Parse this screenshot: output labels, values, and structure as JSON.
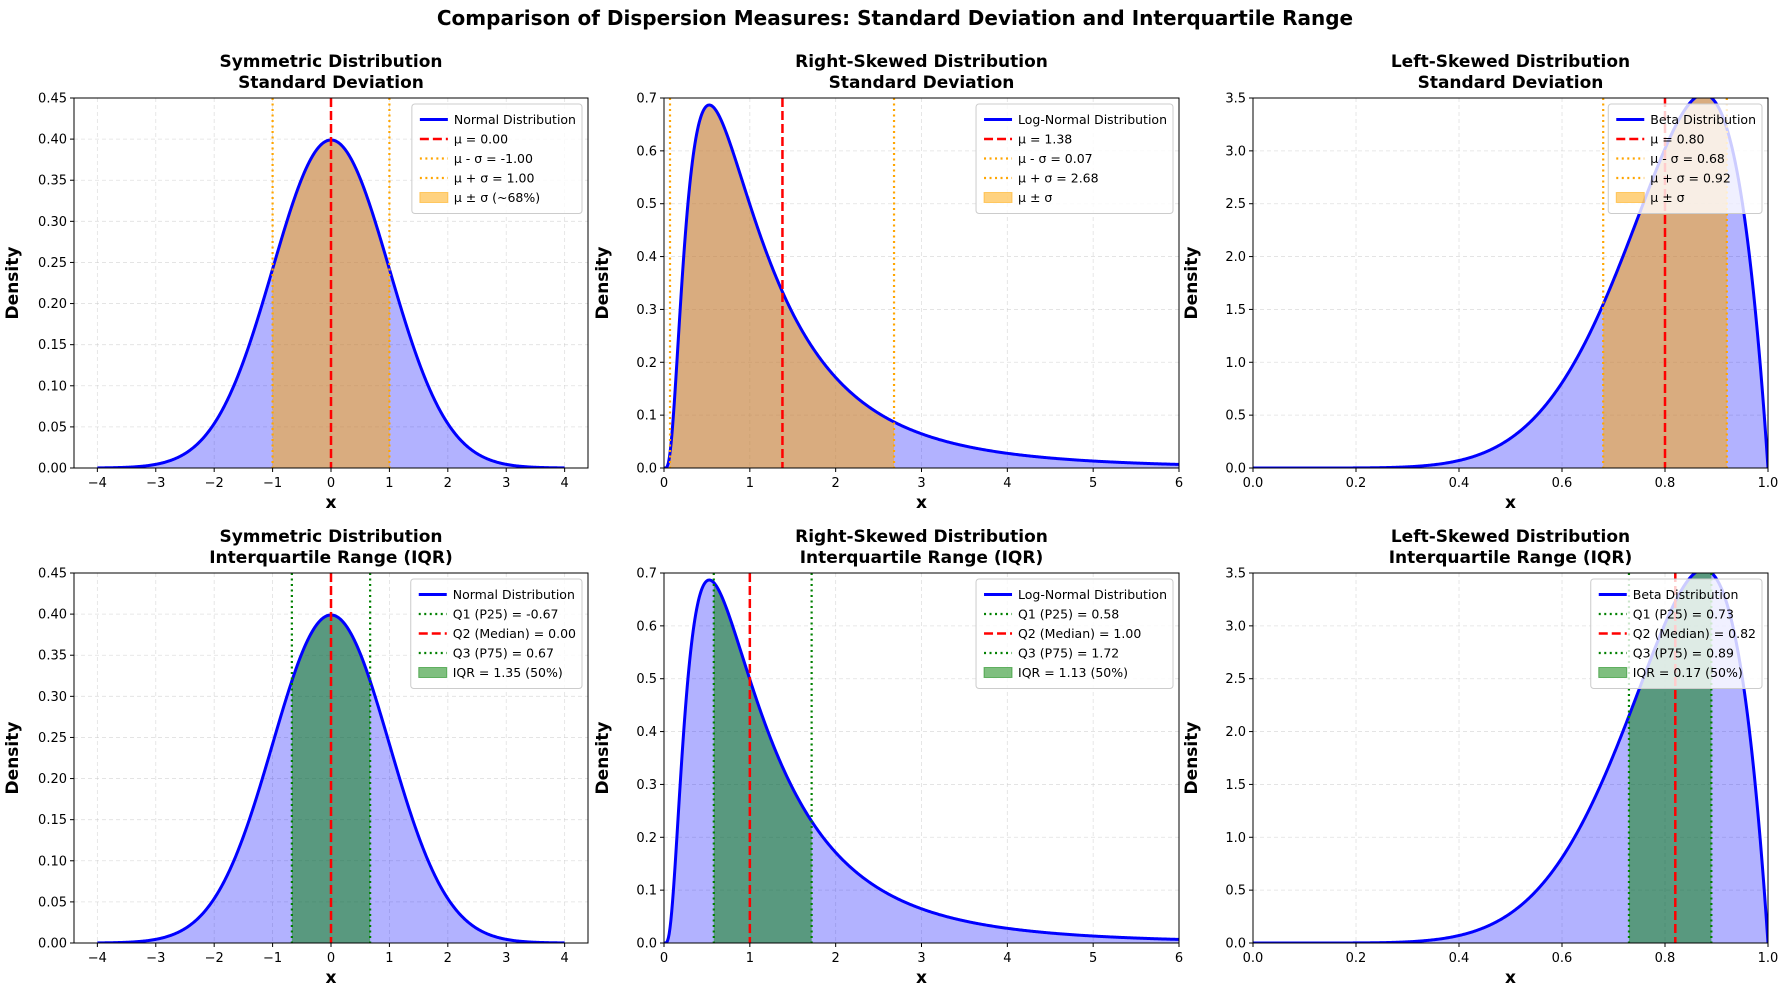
{
  "figure": {
    "title": "Comparison of Dispersion Measures: Standard Deviation and Interquartile Range"
  },
  "colors": {
    "curve": "#0000ff",
    "under_curve_fill": "#0000ff",
    "mean_line": "#ff0000",
    "sigma_lines": "#ffa500",
    "sigma_band": "#ffa500",
    "quartile_lines": "#008000",
    "iqr_band": "#008000",
    "grid": "#cccccc"
  },
  "chart_data": [
    {
      "type": "area",
      "title": [
        "Symmetric Distribution",
        "Standard Deviation"
      ],
      "xlabel": "x",
      "ylabel": "Density",
      "distribution": {
        "family": "normal",
        "mean": 0,
        "sd": 1,
        "x_range": [
          -4,
          4
        ]
      },
      "xlim": [
        -4.4,
        4.4
      ],
      "ylim": [
        0,
        0.45
      ],
      "xticks": [
        -4,
        -3,
        -2,
        -1,
        0,
        1,
        2,
        3,
        4
      ],
      "yticks": [
        "0.00",
        "0.05",
        "0.10",
        "0.15",
        "0.20",
        "0.25",
        "0.30",
        "0.35",
        "0.40",
        "0.45"
      ],
      "grid": true,
      "legend_position": "top-right",
      "mode": "sd",
      "markers": {
        "center": 0.0,
        "low": -1.0,
        "high": 1.0
      },
      "legend": [
        "Normal Distribution",
        "μ = 0.00",
        "μ - σ = -1.00",
        "μ + σ = 1.00",
        "μ ± σ (~68%)"
      ]
    },
    {
      "type": "area",
      "title": [
        "Right-Skewed Distribution",
        "Standard Deviation"
      ],
      "xlabel": "x",
      "ylabel": "Density",
      "distribution": {
        "family": "lognormal",
        "mu": 0,
        "sigma": 0.8,
        "x_range": [
          0,
          6
        ]
      },
      "xlim": [
        0,
        6
      ],
      "ylim": [
        0,
        0.7
      ],
      "xticks": [
        0,
        1,
        2,
        3,
        4,
        5,
        6
      ],
      "yticks": [
        "0.0",
        "0.1",
        "0.2",
        "0.3",
        "0.4",
        "0.5",
        "0.6",
        "0.7"
      ],
      "grid": true,
      "legend_position": "top-right",
      "mode": "sd",
      "markers": {
        "center": 1.38,
        "low": 0.07,
        "high": 2.68
      },
      "legend": [
        "Log-Normal Distribution",
        "μ = 1.38",
        "μ - σ = 0.07",
        "μ + σ = 2.68",
        "μ ± σ"
      ]
    },
    {
      "type": "area",
      "title": [
        "Left-Skewed Distribution",
        "Standard Deviation"
      ],
      "xlabel": "x",
      "ylabel": "Density",
      "distribution": {
        "family": "beta",
        "a": 8,
        "b": 2,
        "x_range": [
          0,
          1
        ]
      },
      "xlim": [
        0,
        1
      ],
      "ylim": [
        0,
        3.5
      ],
      "xticks": [
        "0.0",
        "0.2",
        "0.4",
        "0.6",
        "0.8",
        "1.0"
      ],
      "yticks": [
        "0.0",
        "0.5",
        "1.0",
        "1.5",
        "2.0",
        "2.5",
        "3.0",
        "3.5"
      ],
      "grid": true,
      "legend_position": "top-right",
      "mode": "sd",
      "markers": {
        "center": 0.8,
        "low": 0.68,
        "high": 0.92
      },
      "legend": [
        "Beta Distribution",
        "μ = 0.80",
        "μ - σ = 0.68",
        "μ + σ = 0.92",
        "μ ± σ"
      ]
    },
    {
      "type": "area",
      "title": [
        "Symmetric Distribution",
        "Interquartile Range (IQR)"
      ],
      "xlabel": "x",
      "ylabel": "Density",
      "distribution": {
        "family": "normal",
        "mean": 0,
        "sd": 1,
        "x_range": [
          -4,
          4
        ]
      },
      "xlim": [
        -4.4,
        4.4
      ],
      "ylim": [
        0,
        0.45
      ],
      "xticks": [
        -4,
        -3,
        -2,
        -1,
        0,
        1,
        2,
        3,
        4
      ],
      "yticks": [
        "0.00",
        "0.05",
        "0.10",
        "0.15",
        "0.20",
        "0.25",
        "0.30",
        "0.35",
        "0.40",
        "0.45"
      ],
      "grid": true,
      "legend_position": "top-right",
      "mode": "iqr",
      "markers": {
        "center": 0.0,
        "low": -0.67,
        "high": 0.67
      },
      "legend": [
        "Normal Distribution",
        "Q1 (P25) = -0.67",
        "Q2 (Median) = 0.00",
        "Q3 (P75) = 0.67",
        "IQR = 1.35 (50%)"
      ]
    },
    {
      "type": "area",
      "title": [
        "Right-Skewed Distribution",
        "Interquartile Range (IQR)"
      ],
      "xlabel": "x",
      "ylabel": "Density",
      "distribution": {
        "family": "lognormal",
        "mu": 0,
        "sigma": 0.8,
        "x_range": [
          0,
          6
        ]
      },
      "xlim": [
        0,
        6
      ],
      "ylim": [
        0,
        0.7
      ],
      "xticks": [
        0,
        1,
        2,
        3,
        4,
        5,
        6
      ],
      "yticks": [
        "0.0",
        "0.1",
        "0.2",
        "0.3",
        "0.4",
        "0.5",
        "0.6",
        "0.7"
      ],
      "grid": true,
      "legend_position": "top-right",
      "mode": "iqr",
      "markers": {
        "center": 1.0,
        "low": 0.58,
        "high": 1.72
      },
      "legend": [
        "Log-Normal Distribution",
        "Q1 (P25) = 0.58",
        "Q2 (Median) = 1.00",
        "Q3 (P75) = 1.72",
        "IQR = 1.13 (50%)"
      ]
    },
    {
      "type": "area",
      "title": [
        "Left-Skewed Distribution",
        "Interquartile Range (IQR)"
      ],
      "xlabel": "x",
      "ylabel": "Density",
      "distribution": {
        "family": "beta",
        "a": 8,
        "b": 2,
        "x_range": [
          0,
          1
        ]
      },
      "xlim": [
        0,
        1
      ],
      "ylim": [
        0,
        3.5
      ],
      "xticks": [
        "0.0",
        "0.2",
        "0.4",
        "0.6",
        "0.8",
        "1.0"
      ],
      "yticks": [
        "0.0",
        "0.5",
        "1.0",
        "1.5",
        "2.0",
        "2.5",
        "3.0",
        "3.5"
      ],
      "grid": true,
      "legend_position": "top-right",
      "mode": "iqr",
      "markers": {
        "center": 0.82,
        "low": 0.73,
        "high": 0.89
      },
      "legend": [
        "Beta Distribution",
        "Q1 (P25) = 0.73",
        "Q2 (Median) = 0.82",
        "Q3 (P75) = 0.89",
        "IQR = 0.17 (50%)"
      ]
    }
  ]
}
